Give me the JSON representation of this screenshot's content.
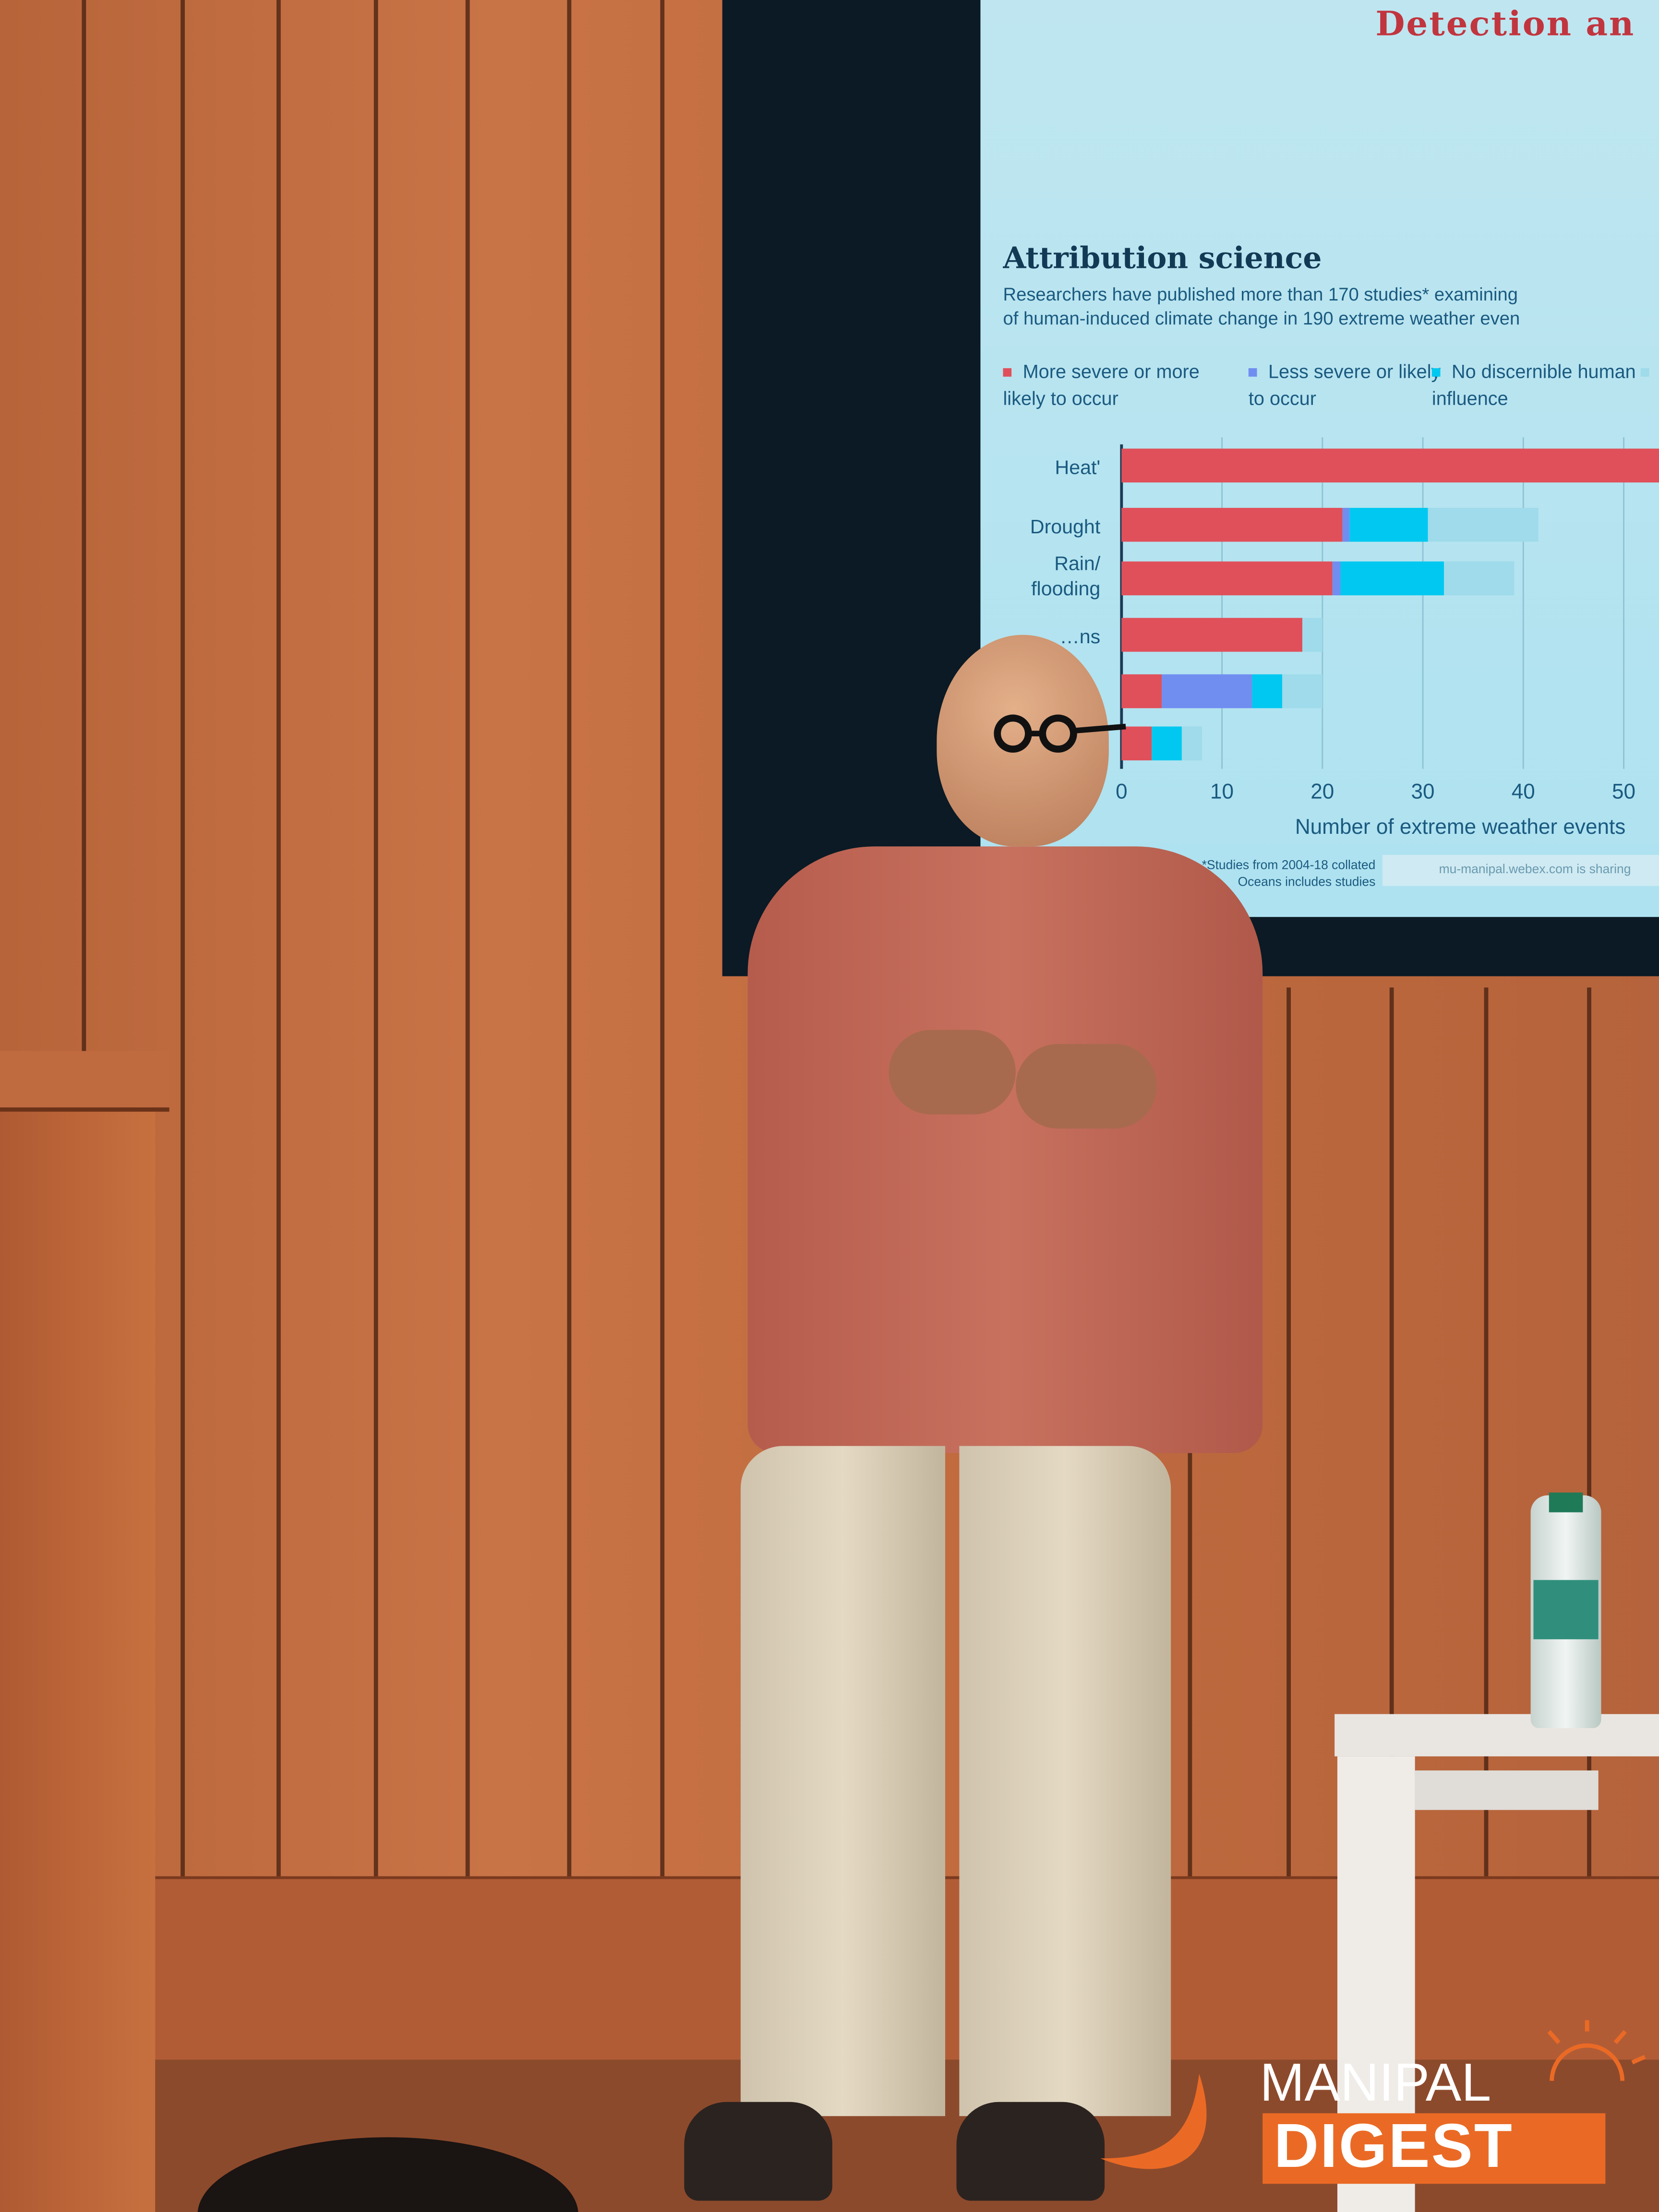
{
  "slide": {
    "title": "Detection an",
    "chart_title": "Attribution science",
    "subtitle_line1": "Researchers have published more than 170 studies* examining",
    "subtitle_line2": "of human-induced climate change in 190 extreme weather even",
    "footnote_line1": "*Studies from 2004-18 collated",
    "footnote_line2": "Oceans includes studies",
    "share_notice": "mu-manipal.webex.com is sharing"
  },
  "chart_data": {
    "type": "bar",
    "orientation": "horizontal",
    "stacked": true,
    "title": "Attribution science",
    "xlabel": "Number of extreme weather events",
    "xlim": [
      0,
      55
    ],
    "xticks": [
      "0",
      "10",
      "20",
      "30",
      "40",
      "50"
    ],
    "grid": true,
    "legend_placement": "top",
    "categories": [
      "Heat'",
      "Drought",
      "Rain/ flooding",
      "…ns",
      "",
      ""
    ],
    "series": [
      {
        "name": "More severe or more likely to occur",
        "color": "#e0505a",
        "values": [
          55,
          22,
          21,
          18,
          4,
          3
        ]
      },
      {
        "name": "Less severe or likely to occur",
        "color": "#6f8ef0",
        "values": [
          0,
          0.7,
          0.8,
          0,
          9,
          0
        ]
      },
      {
        "name": "No discernible human influence",
        "color": "#00c8f0",
        "values": [
          0,
          7.8,
          10.3,
          0,
          3,
          3
        ]
      },
      {
        "name": "",
        "color": "#9fdbea",
        "values": [
          0,
          11,
          7,
          2,
          4,
          2
        ]
      }
    ]
  },
  "logo": {
    "top": "MANIPAL",
    "bottom": "DIGEST",
    "color": "#ea6a25"
  }
}
